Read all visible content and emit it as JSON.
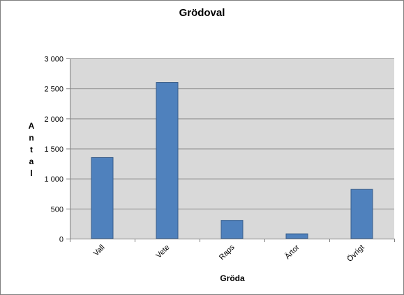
{
  "chart_data": {
    "type": "bar",
    "title": "Grödoval",
    "xlabel": "Gröda",
    "ylabel": "Antal",
    "categories": [
      "Vall",
      "Vete",
      "Raps",
      "Ärtor",
      "Övrigt"
    ],
    "values": [
      1350,
      2600,
      305,
      80,
      820
    ],
    "ylim": [
      0,
      3000
    ],
    "yticks": [
      0,
      500,
      1000,
      1500,
      2000,
      2500,
      3000
    ],
    "ytick_labels": [
      "0",
      "500",
      "1 000",
      "1 500",
      "2 000",
      "2 500",
      "3 000"
    ],
    "grid": true,
    "legend": "none",
    "colors": {
      "bar": "#4f81bd",
      "bar_edge": "#385d8a",
      "plot_bg": "#d9d9d9",
      "gridline": "#8c8c8c",
      "axis": "#808080"
    }
  }
}
